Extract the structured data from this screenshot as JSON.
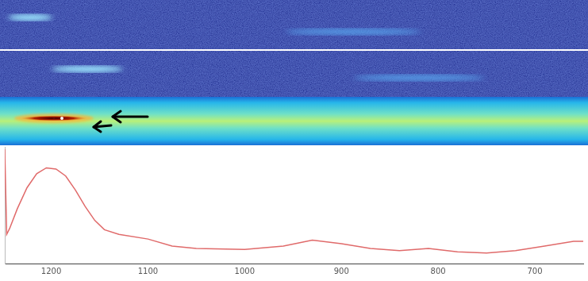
{
  "chart_data": {
    "type": "line",
    "x": [
      1248,
      1246,
      1243,
      1235,
      1225,
      1215,
      1205,
      1195,
      1185,
      1175,
      1165,
      1155,
      1145,
      1130,
      1100,
      1075,
      1050,
      1000,
      960,
      930,
      900,
      870,
      840,
      810,
      780,
      750,
      720,
      690,
      660,
      650
    ],
    "values": [
      98,
      25,
      30,
      47,
      65,
      77,
      82,
      81,
      75,
      63,
      49,
      37,
      29,
      25,
      21,
      15,
      13,
      12,
      15,
      20,
      17,
      13,
      11,
      13,
      10,
      9,
      11,
      15,
      19,
      19
    ],
    "color": "#e06a6a",
    "xlim": [
      1248,
      650
    ],
    "xticks": [
      1200,
      1100,
      1000,
      900,
      800,
      700
    ],
    "ylim": [
      0,
      100
    ],
    "grid": false,
    "tick_labels": "x"
  }
}
